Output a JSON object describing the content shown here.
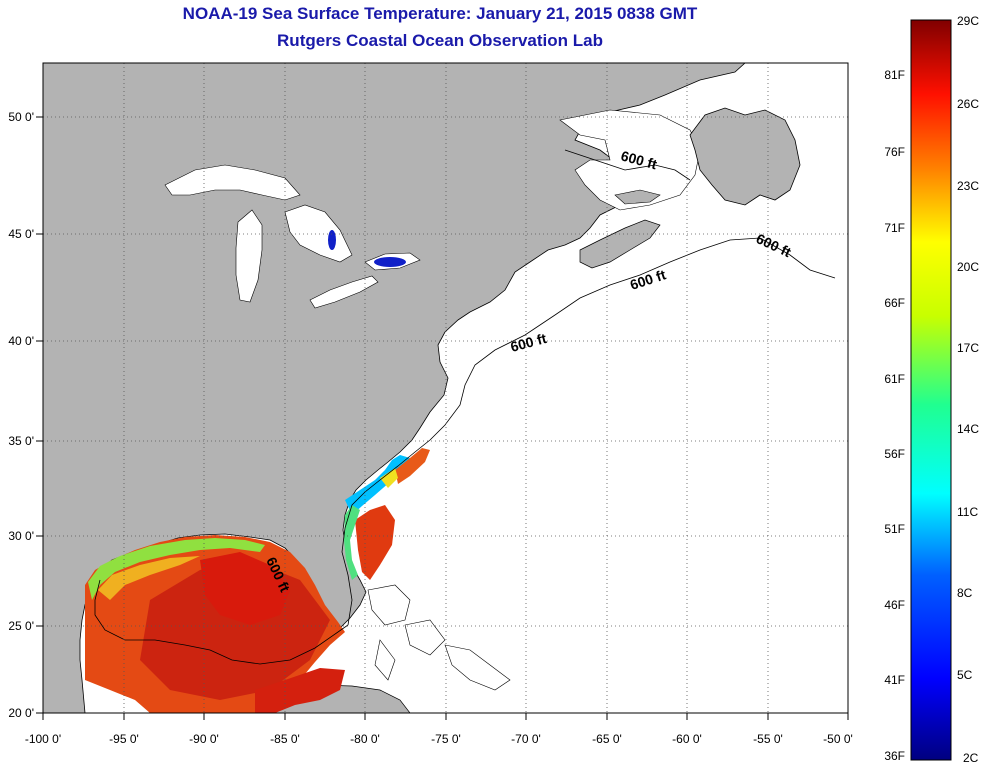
{
  "header": {
    "title": "NOAA-19 Sea Surface Temperature:  January 21, 2015 0838 GMT",
    "subtitle": "Rutgers Coastal Ocean Observation Lab"
  },
  "axes": {
    "lon_ticks": [
      "-100 0'",
      "-95 0'",
      "-90 0'",
      "-85 0'",
      "-80 0'",
      "-75 0'",
      "-70 0'",
      "-65 0'",
      "-60 0'",
      "-55 0'",
      "-50 0'"
    ],
    "lat_ticks": [
      "50 0'",
      "45 0'",
      "40 0'",
      "35 0'",
      "30 0'",
      "25 0'",
      "20 0'"
    ]
  },
  "contour_label": "600 ft",
  "colorbar": {
    "celsius": [
      "29C",
      "26C",
      "23C",
      "20C",
      "17C",
      "14C",
      "11C",
      "8C",
      "5C",
      "2C"
    ],
    "fahrenheit": [
      "81F",
      "76F",
      "71F",
      "66F",
      "61F",
      "56F",
      "51F",
      "46F",
      "41F",
      "36F"
    ]
  },
  "colors": {
    "land": "#b3b3b3",
    "ocean_no_data": "#ffffff",
    "title": "#1a1aaa",
    "warm": "#e03a10",
    "hot": "#c81a0e",
    "cool": "#00c8ff"
  }
}
